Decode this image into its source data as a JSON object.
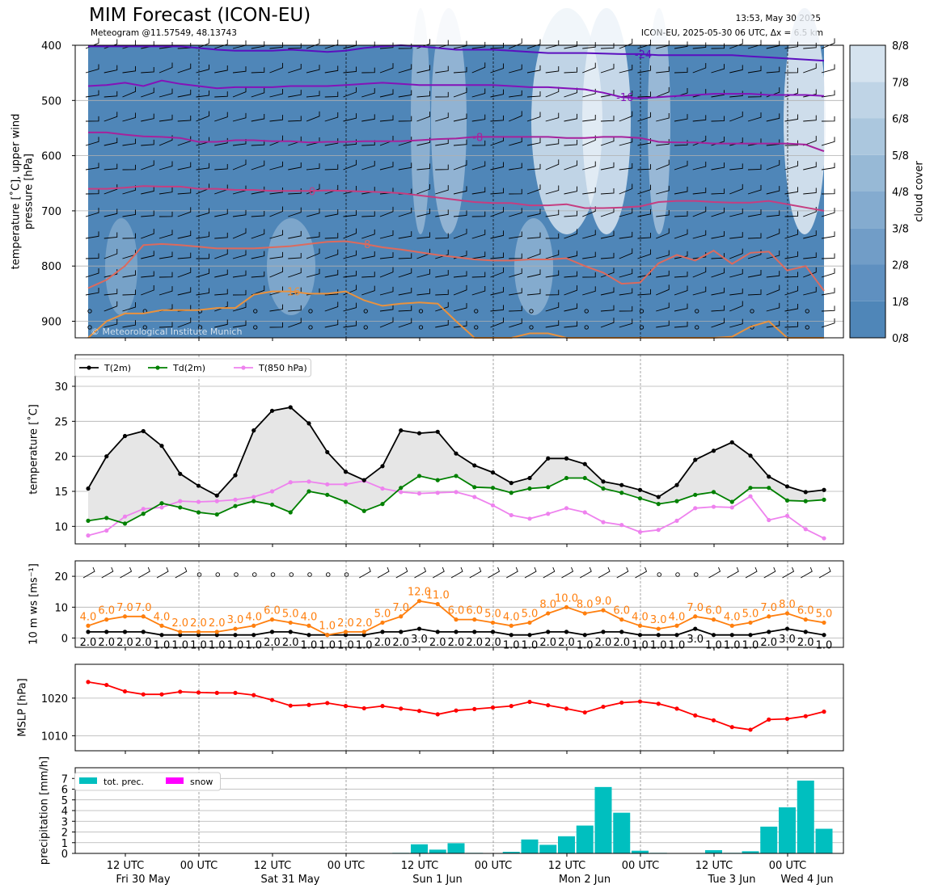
{
  "header": {
    "title": "MIM Forecast (ICON-EU)",
    "subtitle": "Meteogram @11.57549, 48.13743",
    "timestamp": "13:53, May 30 2025",
    "run_info": "ICON-EU, 2025-05-30 06 UTC, Δx = 6.5 km"
  },
  "watermark": "© Meteorological Institute Munich",
  "time_axis": {
    "ticks": [
      {
        "line1": "12 UTC",
        "line2": "Fri 30 May"
      },
      {
        "line1": "00 UTC",
        "line2": ""
      },
      {
        "line1": "12 UTC",
        "line2": "Sat 31 May"
      },
      {
        "line1": "00 UTC",
        "line2": ""
      },
      {
        "line1": "12 UTC",
        "line2": "Sun 1 Jun"
      },
      {
        "line1": "00 UTC",
        "line2": ""
      },
      {
        "line1": "12 UTC",
        "line2": "Mon 2 Jun"
      },
      {
        "line1": "00 UTC",
        "line2": ""
      },
      {
        "line1": "12 UTC",
        "line2": "Tue 3 Jun"
      },
      {
        "line1": "00 UTC",
        "line2": "Wed 4 Jun"
      }
    ]
  },
  "chart_data": [
    {
      "type": "heatmap",
      "panel": "upper-air",
      "ylabel": "temperature [˚C], upper wind\npressure [hPa]",
      "yticks": [
        400,
        500,
        600,
        700,
        800,
        900
      ],
      "ylim": [
        930,
        400
      ],
      "colorbar": {
        "label": "cloud cover",
        "ticks": [
          "0/8",
          "1/8",
          "2/8",
          "3/8",
          "4/8",
          "5/8",
          "6/8",
          "7/8",
          "8/8"
        ],
        "colors": [
          "#4f86b8",
          "#5f90c0",
          "#719dc7",
          "#84abcf",
          "#97b9d6",
          "#abc7de",
          "#bfd4e6",
          "#d5e3ef",
          "#ecf2f8"
        ]
      },
      "isotherms": [
        {
          "label": "-24",
          "color": "#5b0fbf",
          "values": [
            402,
            402,
            402,
            402,
            402,
            402,
            405,
            408,
            410,
            410,
            410,
            408,
            410,
            412,
            410,
            405,
            402,
            400,
            402,
            405,
            408,
            408,
            408,
            410,
            412,
            414,
            414,
            414,
            415,
            416,
            416,
            418,
            418,
            418,
            418,
            418,
            420,
            422,
            424,
            426,
            428
          ]
        },
        {
          "label": "-16",
          "color": "#8412b8",
          "values": [
            474,
            472,
            468,
            474,
            464,
            470,
            474,
            478,
            476,
            476,
            476,
            474,
            474,
            474,
            472,
            470,
            468,
            470,
            472,
            472,
            472,
            472,
            472,
            474,
            476,
            476,
            478,
            480,
            486,
            494,
            496,
            494,
            492,
            490,
            488,
            488,
            488,
            490,
            490,
            490,
            492
          ]
        },
        {
          "label": "-8",
          "color": "#a6229c",
          "values": [
            558,
            558,
            562,
            565,
            566,
            568,
            575,
            575,
            572,
            572,
            574,
            574,
            576,
            575,
            575,
            574,
            574,
            574,
            572,
            570,
            569,
            566,
            566,
            566,
            566,
            566,
            568,
            568,
            566,
            566,
            568,
            575,
            576,
            576,
            578,
            578,
            578,
            578,
            578,
            580,
            592
          ]
        },
        {
          "label": "0",
          "color": "#c63d80",
          "values": [
            660,
            660,
            658,
            655,
            656,
            656,
            660,
            660,
            662,
            662,
            664,
            664,
            664,
            663,
            664,
            665,
            666,
            668,
            672,
            676,
            680,
            684,
            686,
            686,
            690,
            690,
            688,
            695,
            695,
            694,
            692,
            684,
            682,
            682,
            684,
            685,
            685,
            682,
            688,
            694,
            700
          ]
        },
        {
          "label": "8",
          "color": "#dd6a5d",
          "values": [
            840,
            825,
            800,
            762,
            760,
            762,
            765,
            768,
            768,
            768,
            766,
            764,
            760,
            756,
            755,
            760,
            766,
            770,
            775,
            780,
            784,
            788,
            790,
            790,
            788,
            788,
            786,
            800,
            812,
            832,
            830,
            795,
            780,
            790,
            772,
            796,
            776,
            774,
            808,
            800,
            845
          ]
        },
        {
          "label": "16",
          "color": "#e9923e",
          "values": [
            980,
            900,
            886,
            886,
            880,
            880,
            880,
            876,
            876,
            852,
            846,
            846,
            850,
            850,
            846,
            862,
            872,
            868,
            866,
            868,
            900,
            950,
            980,
            958,
            922,
            922,
            935,
            980,
            1000,
            1000,
            1000,
            1000,
            1000,
            1000,
            960,
            928,
            910,
            900,
            930,
            975,
            1000
          ]
        }
      ]
    },
    {
      "type": "line",
      "panel": "temperature",
      "ylabel": "temperature [˚C]",
      "ylim": [
        7.5,
        34.5
      ],
      "yticks": [
        10,
        15,
        20,
        25,
        30
      ],
      "series": [
        {
          "name": "T(2m)",
          "color": "#000000",
          "values": [
            15.4,
            20.0,
            22.9,
            23.6,
            21.5,
            17.5,
            15.8,
            14.4,
            17.3,
            23.7,
            26.5,
            27.0,
            24.7,
            20.6,
            17.8,
            16.6,
            18.6,
            23.7,
            23.3,
            23.5,
            20.4,
            18.7,
            17.7,
            16.2,
            16.9,
            19.7,
            19.7,
            18.9,
            16.4,
            15.9,
            15.2,
            14.2,
            15.9,
            19.5,
            20.8,
            22.0,
            20.1,
            17.1,
            15.7,
            14.9,
            15.2
          ]
        },
        {
          "name": "Td(2m)",
          "color": "#008000",
          "values": [
            10.8,
            11.2,
            10.4,
            11.8,
            13.3,
            12.7,
            12.0,
            11.7,
            12.9,
            13.6,
            13.1,
            12.0,
            15.0,
            14.5,
            13.5,
            12.2,
            13.2,
            15.5,
            17.2,
            16.6,
            17.2,
            15.6,
            15.5,
            14.8,
            15.4,
            15.6,
            16.9,
            16.9,
            15.4,
            14.8,
            14.0,
            13.2,
            13.6,
            14.5,
            14.9,
            13.5,
            15.5,
            15.5,
            13.7,
            13.6,
            13.8
          ]
        },
        {
          "name": "T(850 hPa)",
          "color": "#ee82ee",
          "values": [
            8.7,
            9.4,
            11.4,
            12.5,
            12.7,
            13.6,
            13.5,
            13.6,
            13.8,
            14.2,
            15.0,
            16.3,
            16.4,
            16.0,
            16.0,
            16.5,
            15.4,
            14.9,
            14.7,
            14.8,
            14.9,
            14.2,
            13.0,
            11.6,
            11.1,
            11.8,
            12.6,
            12.0,
            10.6,
            10.2,
            9.2,
            9.5,
            10.8,
            12.6,
            12.8,
            12.7,
            14.3,
            10.9,
            11.5,
            9.6,
            8.3
          ]
        }
      ]
    },
    {
      "type": "line",
      "panel": "wind",
      "ylabel": "10 m ws [ms⁻¹]",
      "ylim": [
        -3,
        25
      ],
      "yticks": [
        0,
        10,
        20
      ],
      "series": [
        {
          "name": "gust",
          "color": "#ff7f0e",
          "values": [
            4.0,
            6.0,
            7.0,
            7.0,
            4.0,
            2.0,
            2.0,
            2.0,
            3.0,
            4.0,
            6.0,
            5.0,
            4.0,
            1.0,
            2.0,
            2.0,
            5.0,
            7.0,
            12.0,
            11.0,
            6.0,
            6.0,
            5.0,
            4.0,
            5.0,
            8.0,
            10.0,
            8.0,
            9.0,
            6.0,
            4.0,
            3.0,
            4.0,
            7.0,
            6.0,
            4.0,
            5.0,
            7.0,
            8.0,
            6.0,
            5.0
          ]
        },
        {
          "name": "ws",
          "color": "#000000",
          "values": [
            2.0,
            2.0,
            2.0,
            2.0,
            1.0,
            1.0,
            1.0,
            1.0,
            1.0,
            1.0,
            2.0,
            2.0,
            1.0,
            1.0,
            1.0,
            1.0,
            2.0,
            2.0,
            3.0,
            2.0,
            2.0,
            2.0,
            2.0,
            1.0,
            1.0,
            2.0,
            2.0,
            1.0,
            2.0,
            2.0,
            1.0,
            1.0,
            1.0,
            3.0,
            1.0,
            1.0,
            1.0,
            2.0,
            3.0,
            2.0,
            1.0
          ]
        }
      ],
      "gust_labels": [
        "4.0",
        "6.0",
        "7.0",
        "7.0",
        "4.0",
        "2.0",
        "2.0",
        "2.0",
        "3.0",
        "4.0",
        "6.0",
        "5.0",
        "4.0",
        "1.0",
        "2.0",
        "2.0",
        "5.0",
        "7.0",
        "12.0",
        "11.0",
        "6.0",
        "6.0",
        "5.0",
        "4.0",
        "5.0",
        "8.0",
        "10.0",
        "8.0",
        "9.0",
        "6.0",
        "4.0",
        "3.0",
        "4.0",
        "7.0",
        "6.0",
        "4.0",
        "5.0",
        "7.0",
        "8.0",
        "6.0",
        "5.0"
      ],
      "ws_labels": [
        "2.0",
        "2.0",
        "2.0",
        "2.0",
        "1.0",
        "1.0",
        "1.0",
        "1.0",
        "1.0",
        "1.0",
        "2.0",
        "2.0",
        "1.0",
        "1.0",
        "1.0",
        "1.0",
        "2.0",
        "2.0",
        "3.0",
        "2.0",
        "2.0",
        "2.0",
        "2.0",
        "1.0",
        "1.0",
        "2.0",
        "2.0",
        "1.0",
        "2.0",
        "2.0",
        "1.0",
        "1.0",
        "1.0",
        "3.0",
        "1.0",
        "1.0",
        "1.0",
        "2.0",
        "3.0",
        "2.0",
        "1.0"
      ]
    },
    {
      "type": "line",
      "panel": "pressure",
      "ylabel": "MSLP [hPa]",
      "ylim": [
        1006,
        1029
      ],
      "yticks": [
        1010,
        1020
      ],
      "series": [
        {
          "name": "MSLP",
          "color": "#ff0000",
          "values": [
            1024.3,
            1023.5,
            1021.8,
            1021.0,
            1021.0,
            1021.7,
            1021.5,
            1021.4,
            1021.4,
            1020.8,
            1019.5,
            1018.0,
            1018.2,
            1018.7,
            1017.9,
            1017.3,
            1017.9,
            1017.2,
            1016.6,
            1015.7,
            1016.7,
            1017.1,
            1017.5,
            1017.9,
            1019.0,
            1018.1,
            1017.2,
            1016.2,
            1017.7,
            1018.8,
            1019.1,
            1018.5,
            1017.2,
            1015.4,
            1014.1,
            1012.3,
            1011.6,
            1014.3,
            1014.5,
            1015.2,
            1016.4
          ]
        }
      ]
    },
    {
      "type": "bar",
      "panel": "precipitation",
      "ylabel": "precipitation [mm/h]",
      "ylim": [
        0,
        8
      ],
      "yticks": [
        0,
        1,
        2,
        3,
        4,
        5,
        6,
        7
      ],
      "series": [
        {
          "name": "tot. prec.",
          "color": "#00bfbf",
          "values": [
            0,
            0,
            0,
            0,
            0,
            0,
            0,
            0,
            0,
            0,
            0,
            0,
            0,
            0,
            0,
            0,
            0,
            0.05,
            0.85,
            0.35,
            0.95,
            0.05,
            0,
            0.15,
            1.3,
            0.8,
            1.6,
            2.6,
            6.2,
            3.8,
            0.25,
            0.05,
            0,
            0,
            0.3,
            0.05,
            0.2,
            2.5,
            4.3,
            6.8,
            2.3
          ]
        },
        {
          "name": "snow",
          "color": "#ff00ff",
          "values": [
            0,
            0,
            0,
            0,
            0,
            0,
            0,
            0,
            0,
            0,
            0,
            0,
            0,
            0,
            0,
            0,
            0,
            0,
            0,
            0,
            0,
            0,
            0,
            0,
            0,
            0,
            0,
            0,
            0,
            0,
            0,
            0,
            0,
            0,
            0,
            0,
            0,
            0,
            0,
            0,
            0
          ]
        }
      ]
    }
  ]
}
